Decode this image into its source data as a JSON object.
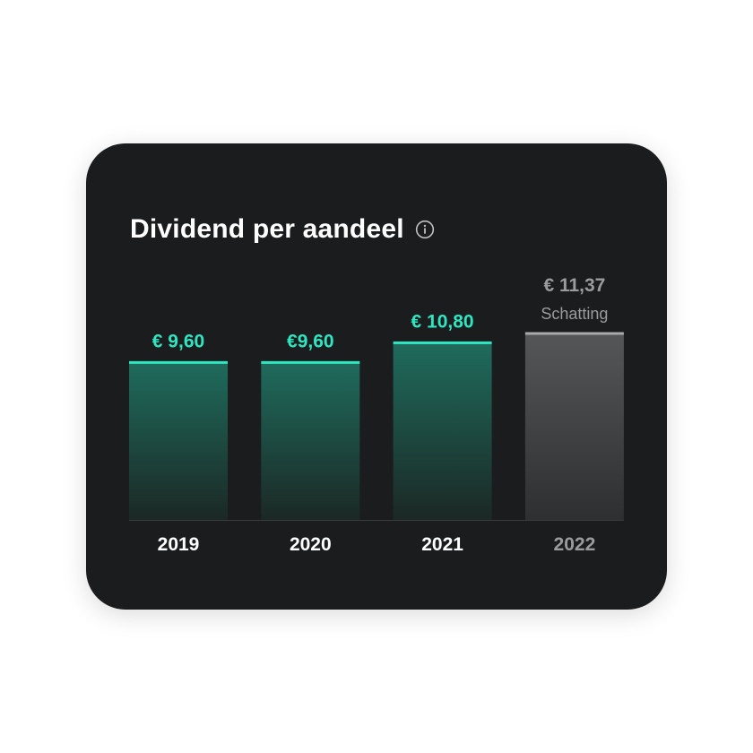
{
  "card": {
    "title": "Dividend per aandeel",
    "info_icon": "info-circle-icon"
  },
  "colors": {
    "background": "#1b1c1e",
    "accent": "#2ee6c1",
    "bar_top": "#1f6b5c",
    "bar_bottom": "#1b2825",
    "estimate_line": "#a9a9ab",
    "estimate_top": "#555658",
    "estimate_bottom": "#2e2f31",
    "estimate_text": "#9a9b9d",
    "year_text": "#ffffff",
    "baseline": "#3a3b3d"
  },
  "chart_data": {
    "type": "bar",
    "title": "Dividend per aandeel",
    "xlabel": "",
    "ylabel": "",
    "ylim": [
      0,
      11.37
    ],
    "grid": false,
    "legend": "none",
    "categories": [
      "2019",
      "2020",
      "2021",
      "2022"
    ],
    "values": [
      9.6,
      9.6,
      10.8,
      11.37
    ],
    "value_labels": [
      "€ 9,60",
      "€9,60",
      "€ 10,80",
      "€ 11,37"
    ],
    "estimate": [
      false,
      false,
      false,
      true
    ],
    "annotations": [
      "",
      "",
      "",
      "Schatting"
    ]
  }
}
